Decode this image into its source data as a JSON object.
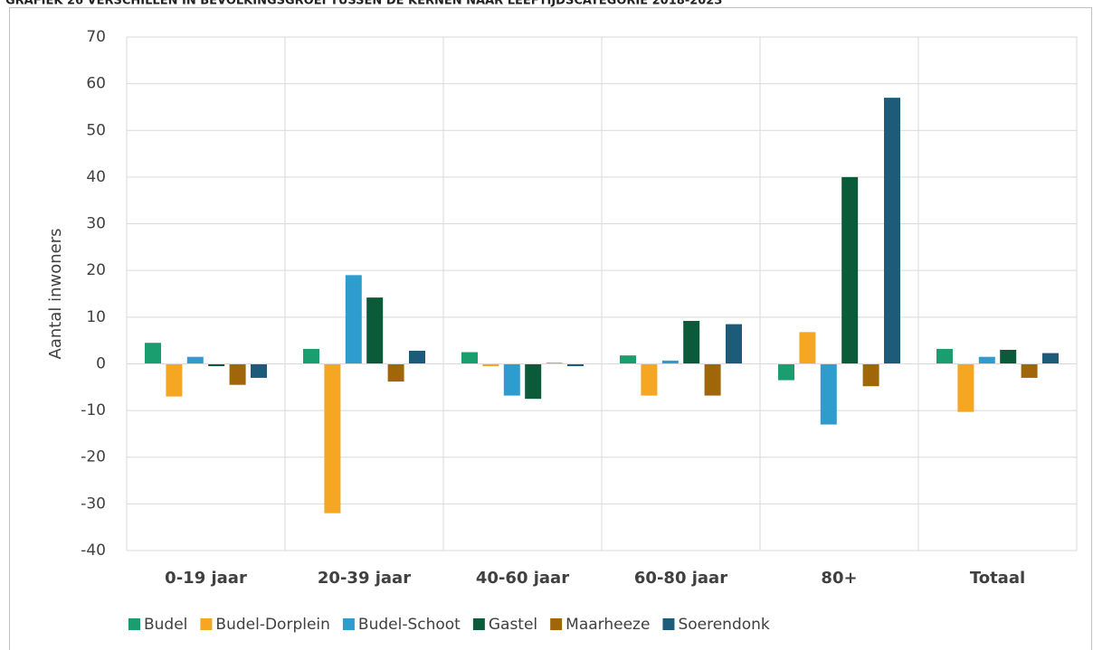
{
  "chart_data": {
    "type": "bar",
    "title": "GRAFIEK 26 VERSCHILLEN IN BEVOLKINGSGROEI TUSSEN DE KERNEN NAAR LEEFTIJDSCATEGORIE 2018-2023",
    "ylabel": "Aantal inwoners",
    "categories": [
      "0-19 jaar",
      "20-39 jaar",
      "40-60 jaar",
      "60-80 jaar",
      "80+",
      "Totaal"
    ],
    "series": [
      {
        "name": "Budel",
        "color": "#1a9e6f",
        "values": [
          4.5,
          3.2,
          2.5,
          1.8,
          -3.5,
          3.2
        ]
      },
      {
        "name": "Budel-Dorplein",
        "color": "#f5a623",
        "values": [
          -7,
          -32,
          -0.5,
          -6.8,
          6.8,
          -10.3
        ]
      },
      {
        "name": "Budel-Schoot",
        "color": "#2e9ccc",
        "values": [
          1.5,
          19,
          -6.8,
          0.7,
          -13,
          1.5
        ]
      },
      {
        "name": "Gastel",
        "color": "#0b5a3a",
        "values": [
          -0.5,
          14.2,
          -7.5,
          9.2,
          40,
          3
        ]
      },
      {
        "name": "Maarheeze",
        "color": "#a0670a",
        "values": [
          -4.5,
          -3.8,
          0.2,
          -6.8,
          -4.8,
          -3
        ]
      },
      {
        "name": "Soerendonk",
        "color": "#1c5c7a",
        "values": [
          -3,
          2.8,
          -0.5,
          8.5,
          57,
          2.3
        ]
      }
    ],
    "ylim": [
      -40,
      70
    ],
    "yticks": [
      -40,
      -30,
      -20,
      -10,
      0,
      10,
      20,
      30,
      40,
      50,
      60,
      70
    ],
    "grid": true,
    "legend": "bottom"
  }
}
